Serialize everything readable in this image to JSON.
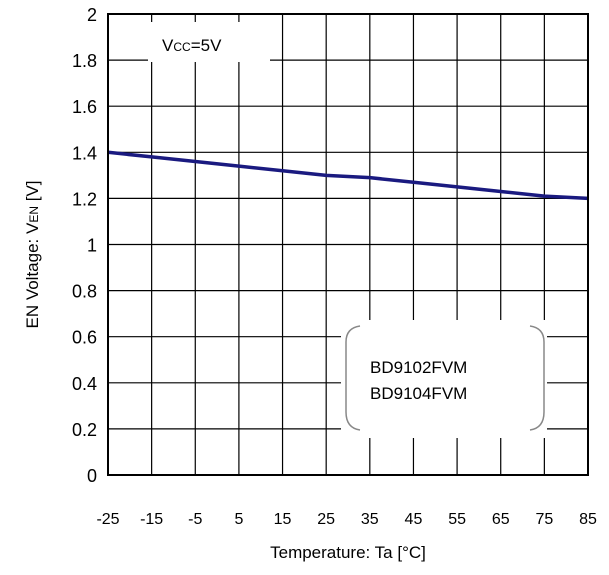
{
  "chart_data": {
    "type": "line",
    "title": "",
    "xlabel": "Temperature: Ta [°C]",
    "ylabel_parts": {
      "main": "EN Voltage: V",
      "sub": "EN",
      "unit": " [V]"
    },
    "xlim": [
      -25,
      85
    ],
    "ylim": [
      0,
      2
    ],
    "grid": true,
    "x_ticks": [
      -25,
      -15,
      -5,
      5,
      15,
      25,
      35,
      45,
      55,
      65,
      75,
      85
    ],
    "x_tick_labels": [
      "-25",
      "-15",
      "-5",
      "5",
      "15",
      "25",
      "35",
      "45",
      "55",
      "65",
      "75",
      "85"
    ],
    "y_ticks": [
      0,
      0.2,
      0.4,
      0.6,
      0.8,
      1,
      1.2,
      1.4,
      1.6,
      1.8,
      2
    ],
    "y_tick_labels": [
      "0",
      "0.2",
      "0.4",
      "0.6",
      "0.8",
      "1",
      "1.2",
      "1.4",
      "1.6",
      "1.8",
      "2"
    ],
    "condition": {
      "main": "V",
      "sub": "CC",
      "rest": "=5V"
    },
    "device_labels": [
      "BD9102FVM",
      "BD9104FVM"
    ],
    "series": [
      {
        "color": "#1a1a80",
        "x": [
          -25,
          -15,
          -5,
          5,
          15,
          25,
          35,
          45,
          55,
          65,
          75,
          85
        ],
        "y": [
          1.4,
          1.38,
          1.36,
          1.34,
          1.32,
          1.3,
          1.29,
          1.27,
          1.25,
          1.23,
          1.21,
          1.2
        ]
      }
    ]
  }
}
